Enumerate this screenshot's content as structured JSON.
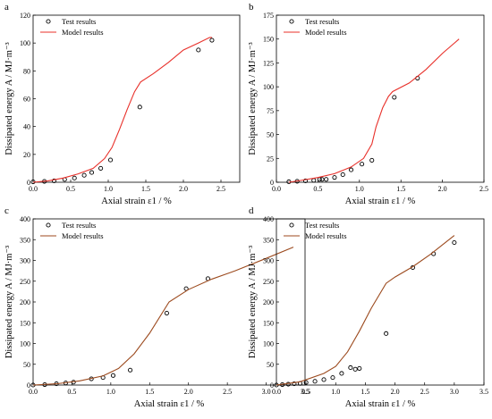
{
  "chart_data": [
    {
      "panel": "a",
      "type": "scatter",
      "xlabel": "Axial strain ε1 / %",
      "ylabel": "Dissipated energy A / MJ·m⁻³",
      "xlim": [
        0,
        2.75
      ],
      "ylim": [
        0,
        120
      ],
      "xticks": [
        "0.0",
        "0.5",
        "1.0",
        "1.5",
        "2.0",
        "2.5"
      ],
      "yticks": [
        "0",
        "20",
        "40",
        "60",
        "80",
        "100",
        "120"
      ],
      "legend": "top-left",
      "series": [
        {
          "name": "Test results",
          "marker": "open-circle",
          "color": "#000000",
          "x": [
            0.0,
            0.15,
            0.28,
            0.42,
            0.55,
            0.68,
            0.78,
            0.9,
            1.03,
            1.42,
            2.2,
            2.38
          ],
          "y": [
            0.3,
            0.6,
            1,
            2,
            3,
            5,
            7,
            10,
            16,
            54,
            95,
            102
          ]
        },
        {
          "name": "Model results",
          "type": "line",
          "color": "#e8302a",
          "x": [
            0.0,
            0.2,
            0.4,
            0.6,
            0.8,
            0.95,
            1.05,
            1.15,
            1.25,
            1.35,
            1.43,
            1.6,
            1.8,
            2.0,
            2.2,
            2.35,
            2.38
          ],
          "y": [
            0.0,
            1,
            3,
            6,
            10,
            17,
            25,
            38,
            52,
            65,
            72,
            78,
            86,
            95,
            100,
            104,
            104
          ]
        }
      ]
    },
    {
      "panel": "b",
      "type": "scatter",
      "xlabel": "Axial strain ε1 / %",
      "ylabel": "Dissipated energy A / MJ·m⁻³",
      "xlim": [
        0,
        2.5
      ],
      "ylim": [
        0,
        175
      ],
      "xticks": [
        "0.0",
        "0.5",
        "1.0",
        "1.5",
        "2.0",
        "2.5"
      ],
      "yticks": [
        "0",
        "25",
        "50",
        "75",
        "100",
        "125",
        "150",
        "175"
      ],
      "legend": "top-left",
      "series": [
        {
          "name": "Test results",
          "marker": "open-circle",
          "color": "#000000",
          "x": [
            0.15,
            0.25,
            0.35,
            0.45,
            0.52,
            0.55,
            0.6,
            0.7,
            0.8,
            0.9,
            1.03,
            1.15,
            1.42,
            1.7
          ],
          "y": [
            0.5,
            1,
            1.5,
            2,
            3,
            3,
            3,
            5,
            8,
            13,
            19,
            23,
            89,
            109
          ]
        },
        {
          "name": "Model results",
          "type": "line",
          "color": "#e8302a",
          "x": [
            0.15,
            0.3,
            0.5,
            0.7,
            0.9,
            1.05,
            1.15,
            1.2,
            1.28,
            1.35,
            1.4,
            1.6,
            1.8,
            2.0,
            2.2
          ],
          "y": [
            0,
            2,
            5,
            9,
            16,
            25,
            40,
            58,
            78,
            90,
            95,
            104,
            118,
            135,
            150
          ]
        }
      ]
    },
    {
      "panel": "c",
      "type": "scatter",
      "xlabel": "Axial strain ε1 / %",
      "ylabel": "Dissipated energy A / MJ·m⁻³",
      "xlim": [
        0,
        3.5
      ],
      "ylim": [
        0,
        400
      ],
      "xticks": [
        "0.0",
        "0.5",
        "1.0",
        "1.5",
        "2.0",
        "2.5",
        "3.0",
        "3.5"
      ],
      "yticks": [
        "0",
        "50",
        "100",
        "150",
        "200",
        "250",
        "300",
        "350",
        "400"
      ],
      "legend": "top-left",
      "series": [
        {
          "name": "Test results",
          "marker": "open-circle",
          "color": "#000000",
          "x": [
            0.0,
            0.15,
            0.3,
            0.42,
            0.52,
            0.75,
            0.9,
            1.03,
            1.25,
            1.72,
            1.97,
            2.25
          ],
          "y": [
            0,
            1,
            3,
            5,
            7,
            15,
            18,
            23,
            36,
            173,
            232,
            256
          ]
        },
        {
          "name": "Model results",
          "type": "line",
          "color": "#9c4a1e",
          "x": [
            0.0,
            0.3,
            0.6,
            0.9,
            1.1,
            1.3,
            1.5,
            1.75,
            2.0,
            2.3,
            2.6,
            3.0,
            3.35
          ],
          "y": [
            0,
            3,
            10,
            22,
            40,
            75,
            125,
            200,
            230,
            255,
            275,
            305,
            332
          ]
        }
      ]
    },
    {
      "panel": "d",
      "type": "scatter",
      "xlabel": "Axial strain ε1 / %",
      "ylabel": "Dissipated energy A / MJ·m⁻³",
      "xlim": [
        0,
        3.5
      ],
      "ylim": [
        0,
        400
      ],
      "xticks": [
        "0.0",
        "0.5",
        "1.0",
        "1.5",
        "2.0",
        "2.5",
        "3.0",
        "3.5"
      ],
      "yticks": [
        "0",
        "50",
        "100",
        "150",
        "200",
        "250",
        "300",
        "350",
        "400"
      ],
      "legend": "top-left",
      "series": [
        {
          "name": "Test results",
          "marker": "open-circle",
          "color": "#000000",
          "x": [
            0.0,
            0.1,
            0.2,
            0.3,
            0.4,
            0.5,
            0.65,
            0.8,
            0.95,
            1.1,
            1.25,
            1.33,
            1.4,
            1.85,
            2.3,
            2.65,
            3.0
          ],
          "y": [
            0,
            1,
            2,
            3,
            4,
            6,
            9,
            13,
            18,
            28,
            42,
            38,
            40,
            124,
            283,
            316,
            343
          ]
        },
        {
          "name": "Model results",
          "type": "line",
          "color": "#9c4a1e",
          "x": [
            0.0,
            0.4,
            0.8,
            1.0,
            1.2,
            1.4,
            1.6,
            1.85,
            2.0,
            2.3,
            2.6,
            3.0
          ],
          "y": [
            0,
            8,
            28,
            45,
            80,
            130,
            185,
            245,
            260,
            285,
            315,
            360
          ]
        }
      ]
    }
  ]
}
